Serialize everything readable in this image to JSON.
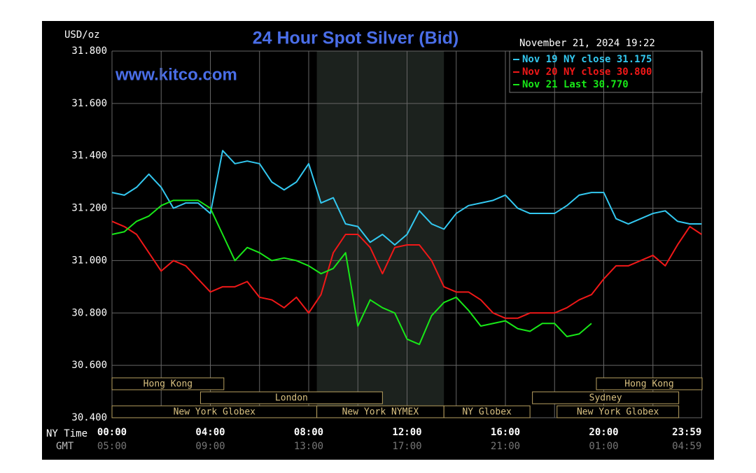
{
  "chart_data": {
    "type": "line",
    "title": "24 Hour Spot Silver (Bid)",
    "y_label": "USD/oz",
    "watermark": "www.kitco.com",
    "timestamp": "November 21, 2024 19:22",
    "x_label": "NY Time",
    "x2_label": "GMT",
    "xlim": [
      0,
      24
    ],
    "xticks": [
      {
        "value": 0,
        "label": "00:00"
      },
      {
        "value": 4,
        "label": "04:00"
      },
      {
        "value": 8,
        "label": "08:00"
      },
      {
        "value": 12,
        "label": "12:00"
      },
      {
        "value": 16,
        "label": "16:00"
      },
      {
        "value": 20,
        "label": "20:00"
      },
      {
        "value": 23.98,
        "label": "23:59"
      }
    ],
    "x2tick_labels": [
      "05:00",
      "09:00",
      "13:00",
      "17:00",
      "21:00",
      "01:00",
      "04:59"
    ],
    "x_minor_grid": [
      2,
      6,
      10,
      14,
      18,
      22
    ],
    "ylim": [
      30.4,
      31.8
    ],
    "yticks": [
      {
        "value": 30.4,
        "label": "30.400"
      },
      {
        "value": 30.6,
        "label": "30.600"
      },
      {
        "value": 30.8,
        "label": "30.800"
      },
      {
        "value": 31.0,
        "label": "31.000"
      },
      {
        "value": 31.2,
        "label": "31.200"
      },
      {
        "value": 31.4,
        "label": "31.400"
      },
      {
        "value": 31.6,
        "label": "31.600"
      },
      {
        "value": 31.8,
        "label": "31.800"
      }
    ],
    "grid": true,
    "shaded_x": [
      8.33,
      13.5
    ],
    "sessions": [
      {
        "name": "Hong Kong",
        "start": 0,
        "end": 4.55,
        "row": 0
      },
      {
        "name": "Hong Kong",
        "start": 19.7,
        "end": 24,
        "row": 0
      },
      {
        "name": "London",
        "start": 3.6,
        "end": 11,
        "row": 1
      },
      {
        "name": "Sydney",
        "start": 17.1,
        "end": 23.05,
        "row": 1
      },
      {
        "name": "New York Globex",
        "start": 0,
        "end": 8.33,
        "row": 2
      },
      {
        "name": "New York NYMEX",
        "start": 8.33,
        "end": 13.5,
        "row": 2
      },
      {
        "name": "NY Globex",
        "start": 13.5,
        "end": 17,
        "row": 2
      },
      {
        "name": "New York Globex",
        "start": 18.1,
        "end": 23.05,
        "row": 2
      }
    ],
    "x": [
      0,
      0.5,
      1,
      1.5,
      2,
      2.5,
      3,
      3.5,
      4,
      4.5,
      5,
      5.5,
      6,
      6.5,
      7,
      7.5,
      8,
      8.5,
      9,
      9.5,
      10,
      10.5,
      11,
      11.5,
      12,
      12.5,
      13,
      13.5,
      14,
      14.5,
      15,
      15.5,
      16,
      16.5,
      17,
      17.5,
      18,
      18.5,
      19,
      19.5,
      20,
      20.5,
      21,
      21.5,
      22,
      22.5,
      23,
      23.5,
      23.98
    ],
    "series": [
      {
        "name": "Nov 19 NY close 31.175",
        "color": "#33c8f0",
        "values": [
          31.26,
          31.25,
          31.28,
          31.33,
          31.28,
          31.2,
          31.22,
          31.22,
          31.18,
          31.42,
          31.37,
          31.38,
          31.37,
          31.3,
          31.27,
          31.3,
          31.37,
          31.22,
          31.24,
          31.14,
          31.13,
          31.07,
          31.1,
          31.06,
          31.1,
          31.19,
          31.14,
          31.12,
          31.18,
          31.21,
          31.22,
          31.23,
          31.25,
          31.2,
          31.18,
          31.18,
          31.18,
          31.21,
          31.25,
          31.26,
          31.26,
          31.16,
          31.14,
          31.16,
          31.18,
          31.19,
          31.15,
          31.14,
          31.14
        ]
      },
      {
        "name": "Nov 20 NY close 30.800",
        "color": "#f01818",
        "values": [
          31.15,
          31.13,
          31.1,
          31.03,
          30.96,
          31.0,
          30.98,
          30.93,
          30.88,
          30.9,
          30.9,
          30.92,
          30.86,
          30.85,
          30.82,
          30.86,
          30.8,
          30.87,
          31.03,
          31.1,
          31.1,
          31.05,
          30.95,
          31.05,
          31.06,
          31.06,
          31.0,
          30.9,
          30.88,
          30.88,
          30.85,
          30.8,
          30.78,
          30.78,
          30.8,
          30.8,
          30.8,
          30.82,
          30.85,
          30.87,
          30.93,
          30.98,
          30.98,
          31.0,
          31.02,
          30.98,
          31.06,
          31.13,
          31.1
        ]
      },
      {
        "name": "Nov 21 Last 30.770",
        "color": "#18e818",
        "values": [
          31.1,
          31.11,
          31.15,
          31.17,
          31.21,
          31.23,
          31.23,
          31.23,
          31.2,
          31.1,
          31.0,
          31.05,
          31.03,
          31.0,
          31.01,
          31.0,
          30.98,
          30.95,
          30.97,
          31.03,
          30.75,
          30.85,
          30.82,
          30.8,
          30.7,
          30.68,
          30.79,
          30.84,
          30.86,
          30.81,
          30.75,
          30.76,
          30.77,
          30.74,
          30.73,
          30.76,
          30.76,
          30.71,
          30.72,
          30.76,
          null,
          null,
          null,
          null,
          null,
          null,
          null,
          null,
          null
        ]
      }
    ]
  }
}
